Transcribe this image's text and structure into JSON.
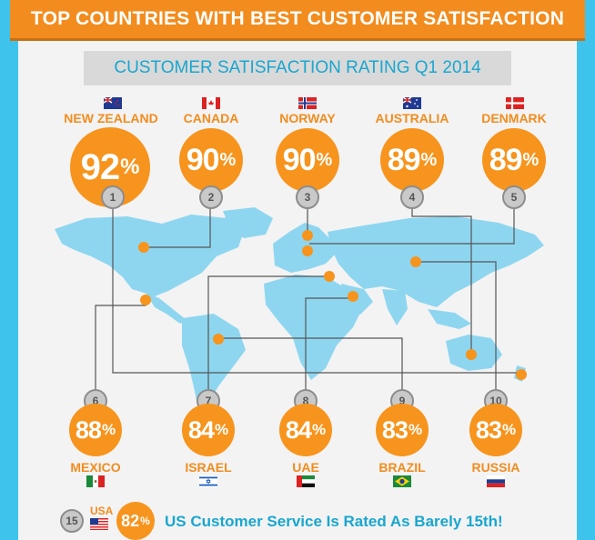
{
  "header": {
    "title": "TOP COUNTRIES WITH BEST CUSTOMER SATISFACTION"
  },
  "subtitle": "CUSTOMER SATISFACTION RATING Q1 2014",
  "top_countries": [
    {
      "rank": "1",
      "name": "NEW ZEALAND",
      "value": "92",
      "flag": "new-zealand-flag"
    },
    {
      "rank": "2",
      "name": "CANADA",
      "value": "90",
      "flag": "canada-flag"
    },
    {
      "rank": "3",
      "name": "NORWAY",
      "value": "90",
      "flag": "norway-flag"
    },
    {
      "rank": "4",
      "name": "AUSTRALIA",
      "value": "89",
      "flag": "australia-flag"
    },
    {
      "rank": "5",
      "name": "DENMARK",
      "value": "89",
      "flag": "denmark-flag"
    }
  ],
  "bottom_countries": [
    {
      "rank": "6",
      "name": "MEXICO",
      "value": "88",
      "flag": "mexico-flag"
    },
    {
      "rank": "7",
      "name": "ISRAEL",
      "value": "84",
      "flag": "israel-flag"
    },
    {
      "rank": "8",
      "name": "UAE",
      "value": "84",
      "flag": "uae-flag"
    },
    {
      "rank": "9",
      "name": "BRAZIL",
      "value": "83",
      "flag": "brazil-flag"
    },
    {
      "rank": "10",
      "name": "RUSSIA",
      "value": "83",
      "flag": "russia-flag"
    }
  ],
  "percent_sign": "%",
  "usa": {
    "rank": "15",
    "name": "USA",
    "value": "82",
    "text": "US Customer Service Is Rated As Barely 15th!"
  },
  "colors": {
    "orange": "#f7941d",
    "blue": "#19a6cf",
    "map": "#8ed6f0",
    "background": "#3ec4ec"
  }
}
